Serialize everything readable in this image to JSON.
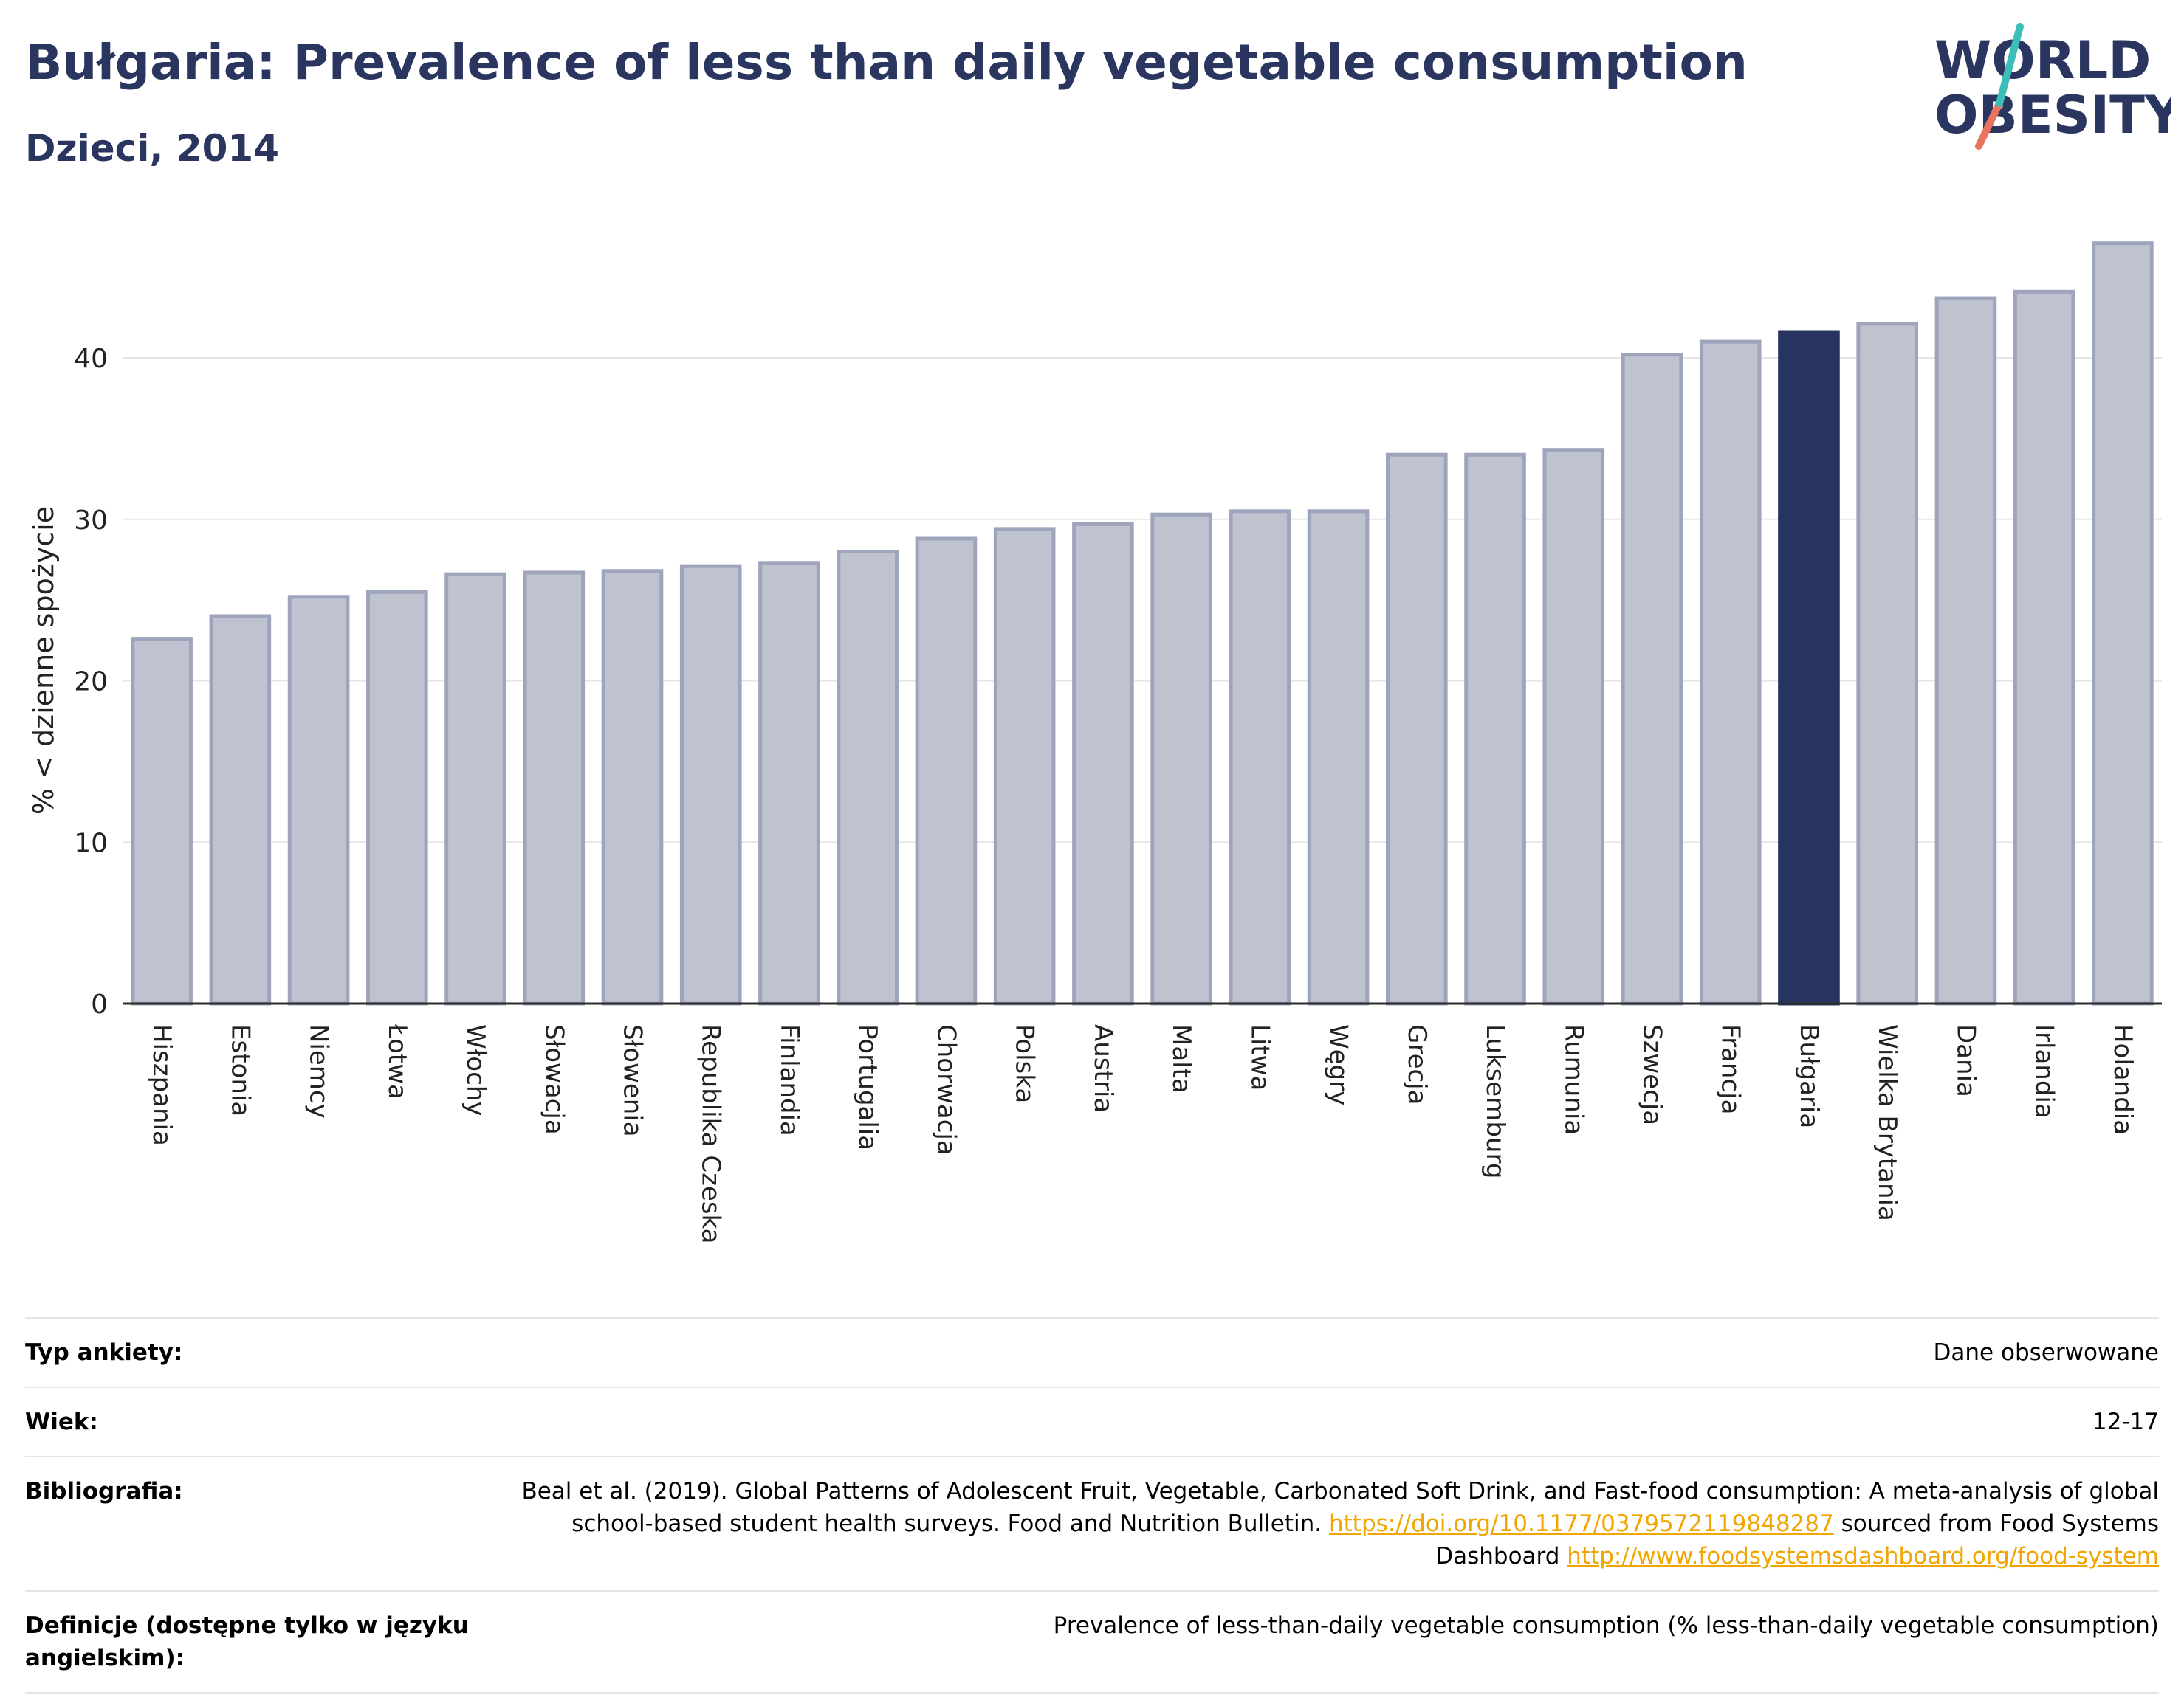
{
  "header": {
    "title": "Bułgaria: Prevalence of less than daily vegetable consumption",
    "subtitle": "Dzieci, 2014"
  },
  "logo": {
    "line1": "WORLD",
    "line2": "OBESITY"
  },
  "chart_data": {
    "type": "bar",
    "title": "Bułgaria: Prevalence of less than daily vegetable consumption",
    "subtitle": "Dzieci, 2014",
    "xlabel": "",
    "ylabel": "% < dzienne spożycie",
    "ylim": [
      0,
      48
    ],
    "yticks": [
      0,
      10,
      20,
      30,
      40
    ],
    "grid": true,
    "highlight": "Bułgaria",
    "categories": [
      "Hiszpania",
      "Estonia",
      "Niemcy",
      "Łotwa",
      "Włochy",
      "Słowacja",
      "Słowenia",
      "Republika Czeska",
      "Finlandia",
      "Portugalia",
      "Chorwacja",
      "Polska",
      "Austria",
      "Malta",
      "Litwa",
      "Węgry",
      "Grecja",
      "Luksemburg",
      "Rumunia",
      "Szwecja",
      "Francja",
      "Bułgaria",
      "Wielka Brytania",
      "Dania",
      "Irlandia",
      "Holandia"
    ],
    "values": [
      22.6,
      24.0,
      25.2,
      25.5,
      26.6,
      26.7,
      26.8,
      27.1,
      27.3,
      28.0,
      28.8,
      29.4,
      29.7,
      30.3,
      30.5,
      30.5,
      34.0,
      34.0,
      34.3,
      40.2,
      41.0,
      41.6,
      42.1,
      43.7,
      44.1,
      47.1
    ],
    "colors": {
      "bar": "#bfc3d0",
      "bar_edge": "#9ea4bb",
      "highlight": "#283460"
    }
  },
  "meta": [
    {
      "label": "Typ ankiety:",
      "value": "Dane obserwowane"
    },
    {
      "label": "Wiek:",
      "value": "12-17"
    },
    {
      "label": "Bibliografia:",
      "value_parts": {
        "text1": "Beal et al. (2019). Global Patterns of Adolescent Fruit, Vegetable, Carbonated Soft Drink, and Fast-food consumption: A meta-analysis of global school-based student health surveys. Food and Nutrition Bulletin.",
        "link1": "https://doi.org/10.1177/0379572119848287",
        "text2": "sourced from Food Systems Dashboard",
        "link2": "http://www.foodsystemsdashboard.org/food-system"
      }
    },
    {
      "label": "Definicje (dostępne tylko w języku angielskim):",
      "value": "Prevalence of less-than-daily vegetable consumption (% less-than-daily vegetable consumption)"
    }
  ]
}
